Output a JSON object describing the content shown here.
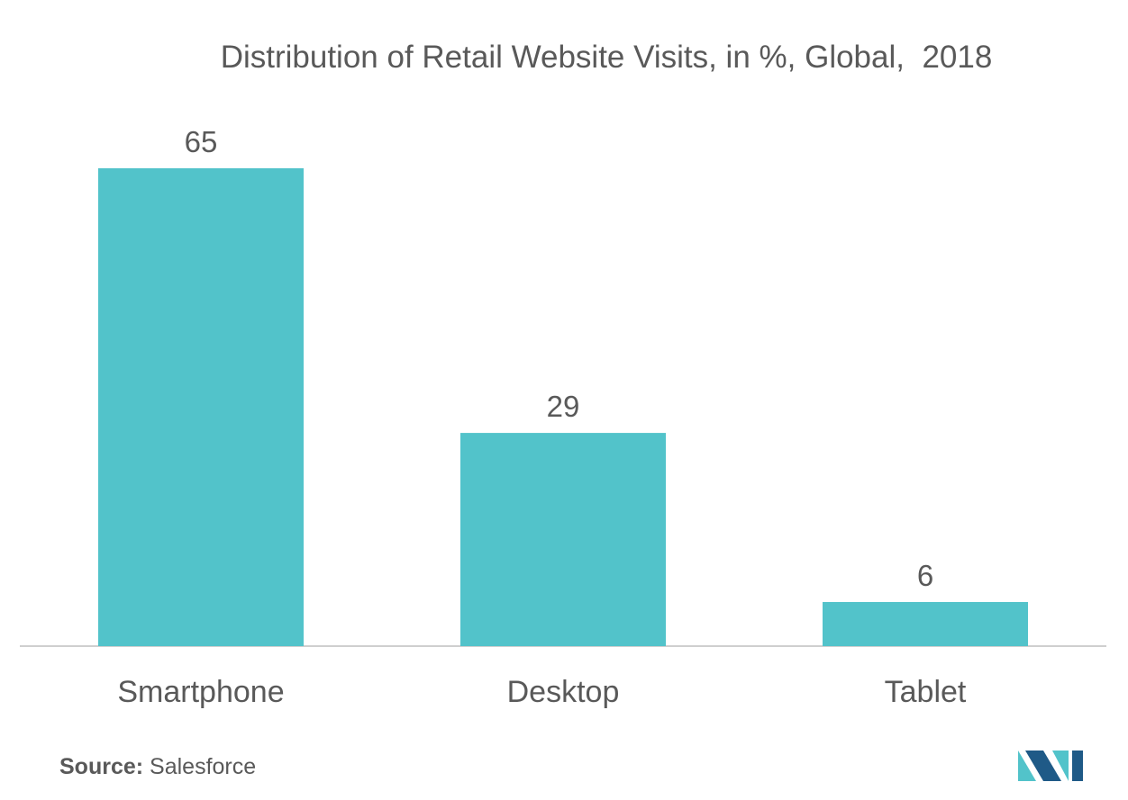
{
  "chart_data": {
    "type": "bar",
    "title": "Distribution of Retail Website Visits, in %, Global,  2018",
    "categories": [
      "Smartphone",
      "Desktop",
      "Tablet"
    ],
    "values": [
      65,
      29,
      6
    ],
    "data_labels": [
      "65",
      "29",
      "6"
    ],
    "xlabel": "",
    "ylabel": "",
    "ylim": [
      0,
      65
    ],
    "grid": false,
    "legend": "none"
  },
  "source": {
    "label": "Source:",
    "text": "Salesforce"
  },
  "colors": {
    "bar": "#52C3CA",
    "text": "#595959",
    "axis": "#BFBFBF",
    "logo_dark": "#1F5A87",
    "logo_light": "#52C3CA"
  },
  "logo": {
    "icon": "mordor-intelligence-logo-icon"
  }
}
